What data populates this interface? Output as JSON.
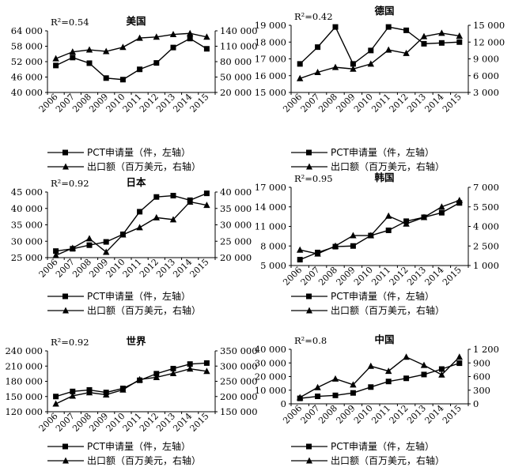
{
  "legend": {
    "pct_label": "PCT申请量（件，左轴）",
    "export_label": "出口额（百万美元，右轴）"
  },
  "chart_data": [
    {
      "type": "line",
      "title": "美国",
      "annotation": "R²=0.54",
      "categories": [
        "2006",
        "2007",
        "2008",
        "2009",
        "2010",
        "2011",
        "2012",
        "2013",
        "2014",
        "2015"
      ],
      "left_axis": {
        "ticks": [
          "40 000",
          "46 000",
          "52 000",
          "58 000",
          "64 000"
        ],
        "ylim": [
          40000,
          64000
        ]
      },
      "right_axis": {
        "ticks": [
          "20 000",
          "50 000",
          "80 000",
          "110 000",
          "140 000"
        ],
        "ylim": [
          20000,
          140000
        ]
      },
      "series": [
        {
          "name": "PCT申请量（件，左轴）",
          "axis": "left",
          "marker": "square",
          "values": [
            50500,
            53600,
            51400,
            45600,
            45000,
            49000,
            51500,
            57500,
            61000,
            57000
          ]
        },
        {
          "name": "出口额（百万美元，右轴）",
          "axis": "right",
          "marker": "triangle",
          "values": [
            86000,
            99000,
            103000,
            100000,
            108000,
            126000,
            128000,
            133000,
            135000,
            128000
          ]
        }
      ]
    },
    {
      "type": "line",
      "title": "德国",
      "annotation": "R²=0.42",
      "categories": [
        "2006",
        "2007",
        "2008",
        "2009",
        "2010",
        "2011",
        "2012",
        "2013",
        "2014",
        "2015"
      ],
      "left_axis": {
        "ticks": [
          "15 000",
          "16 000",
          "17 000",
          "18 000",
          "19 000"
        ],
        "ylim": [
          15000,
          19000
        ]
      },
      "right_axis": {
        "ticks": [
          "3 000",
          "6 000",
          "9 000",
          "12 000",
          "15 000"
        ],
        "ylim": [
          3000,
          15000
        ]
      },
      "series": [
        {
          "name": "PCT申请量（件，左轴）",
          "axis": "left",
          "marker": "square",
          "values": [
            16700,
            17700,
            18900,
            16700,
            17500,
            18900,
            18700,
            17900,
            17950,
            18000
          ]
        },
        {
          "name": "出口额（百万美元，右轴）",
          "axis": "right",
          "marker": "triangle",
          "values": [
            5500,
            6600,
            7500,
            7200,
            8100,
            10600,
            10000,
            13000,
            13600,
            13100
          ]
        }
      ]
    },
    {
      "type": "line",
      "title": "日本",
      "annotation": "R²=0.92",
      "categories": [
        "2006",
        "2007",
        "2008",
        "2009",
        "2010",
        "2011",
        "2012",
        "2013",
        "2014",
        "2015"
      ],
      "left_axis": {
        "ticks": [
          "25 000",
          "30 000",
          "35 000",
          "40 000",
          "45 000"
        ],
        "ylim": [
          25000,
          45000
        ]
      },
      "right_axis": {
        "ticks": [
          "20 000",
          "25 000",
          "30 000",
          "35 000",
          "40 000"
        ],
        "ylim": [
          20000,
          40000
        ]
      },
      "series": [
        {
          "name": "PCT申请量（件，左轴）",
          "axis": "left",
          "marker": "square",
          "values": [
            27000,
            27700,
            28800,
            29800,
            32100,
            39000,
            43500,
            43900,
            42500,
            44600
          ]
        },
        {
          "name": "出口额（百万美元，右轴）",
          "axis": "right",
          "marker": "triangle",
          "values": [
            20700,
            22900,
            25800,
            21700,
            27000,
            29200,
            32200,
            31600,
            37000,
            36000
          ]
        }
      ]
    },
    {
      "type": "line",
      "title": "韩国",
      "annotation": "R²=0.95",
      "categories": [
        "2006",
        "2007",
        "2008",
        "2009",
        "2010",
        "2011",
        "2012",
        "2013",
        "2014",
        "2015"
      ],
      "left_axis": {
        "ticks": [
          "5 000",
          "8 000",
          "11 000",
          "14 000",
          "17 000"
        ],
        "ylim": [
          5000,
          17000
        ]
      },
      "right_axis": {
        "ticks": [
          "1 000",
          "2 500",
          "4 000",
          "5 500",
          "7 000"
        ],
        "ylim": [
          1000,
          7000
        ]
      },
      "series": [
        {
          "name": "PCT申请量（件，左轴）",
          "axis": "left",
          "marker": "square",
          "values": [
            5900,
            7000,
            7900,
            8000,
            9600,
            10400,
            11800,
            12400,
            13100,
            14600
          ]
        },
        {
          "name": "出口额（百万美元，右轴）",
          "axis": "right",
          "marker": "triangle",
          "values": [
            2200,
            1900,
            2500,
            3300,
            3300,
            4800,
            4200,
            4700,
            5500,
            6000
          ]
        }
      ]
    },
    {
      "type": "line",
      "title": "世界",
      "annotation": "R²=0.92",
      "categories": [
        "2006",
        "2007",
        "2008",
        "2009",
        "2010",
        "2011",
        "2012",
        "2013",
        "2014",
        "2015"
      ],
      "left_axis": {
        "ticks": [
          "120 000",
          "150 000",
          "180 000",
          "210 000",
          "240 000"
        ],
        "ylim": [
          120000,
          240000
        ]
      },
      "right_axis": {
        "ticks": [
          "150 000",
          "200 000",
          "250 000",
          "300 000",
          "350 000"
        ],
        "ylim": [
          150000,
          350000
        ]
      },
      "series": [
        {
          "name": "PCT申请量（件，左轴）",
          "axis": "left",
          "marker": "square",
          "values": [
            150000,
            160000,
            163000,
            158000,
            166000,
            182000,
            195000,
            205000,
            214000,
            216000
          ]
        },
        {
          "name": "出口额（百万美元，右轴）",
          "axis": "right",
          "marker": "triangle",
          "values": [
            176000,
            202000,
            213000,
            206000,
            222000,
            256000,
            263000,
            276000,
            291000,
            283000
          ]
        }
      ]
    },
    {
      "type": "line",
      "title": "中国",
      "annotation": "R²=0.8",
      "categories": [
        "2006",
        "2007",
        "2008",
        "2009",
        "2010",
        "2011",
        "2012",
        "2013",
        "2014",
        "2015"
      ],
      "left_axis": {
        "ticks": [
          "0",
          "10 000",
          "20 000",
          "30 000",
          "40 000"
        ],
        "ylim": [
          0,
          40000
        ]
      },
      "right_axis": {
        "ticks": [
          "0",
          "300",
          "600",
          "900",
          "1 200"
        ],
        "ylim": [
          0,
          1200
        ]
      },
      "series": [
        {
          "name": "PCT申请量（件，左轴）",
          "axis": "left",
          "marker": "square",
          "values": [
            4000,
            5500,
            6200,
            8000,
            12300,
            16400,
            18700,
            21500,
            25500,
            29800
          ]
        },
        {
          "name": "出口额（百万美元，右轴）",
          "axis": "right",
          "marker": "triangle",
          "values": [
            140,
            360,
            550,
            420,
            830,
            720,
            1030,
            850,
            640,
            1030
          ]
        }
      ]
    }
  ]
}
